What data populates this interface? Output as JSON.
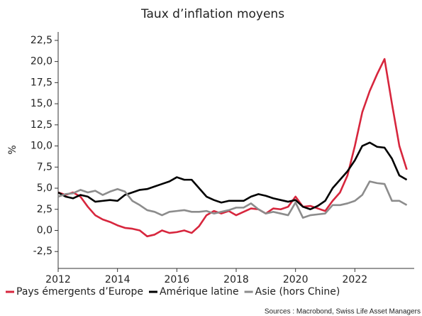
{
  "chart_data": {
    "type": "line",
    "title": "Taux d’inflation moyens",
    "ylabel": "%",
    "source": "Sources : Macrobond, Swiss Life Asset Managers",
    "x": [
      2012,
      2012.25,
      2012.5,
      2012.75,
      2013,
      2013.25,
      2013.5,
      2013.75,
      2014,
      2014.25,
      2014.5,
      2014.75,
      2015,
      2015.25,
      2015.5,
      2015.75,
      2016,
      2016.25,
      2016.5,
      2016.75,
      2017,
      2017.25,
      2017.5,
      2017.75,
      2018,
      2018.25,
      2018.5,
      2018.75,
      2019,
      2019.25,
      2019.5,
      2019.75,
      2020,
      2020.25,
      2020.5,
      2020.75,
      2021,
      2021.25,
      2021.5,
      2021.75,
      2022,
      2022.25,
      2022.5,
      2022.75,
      2023,
      2023.25,
      2023.5,
      2023.75
    ],
    "series": [
      {
        "name": "Pays émergents d’Europe",
        "color": "#d7263d",
        "values": [
          4.5,
          4.2,
          4.5,
          4.0,
          2.8,
          1.8,
          1.3,
          1.0,
          0.6,
          0.3,
          0.2,
          0.0,
          -0.7,
          -0.5,
          0.0,
          -0.3,
          -0.2,
          0.0,
          -0.3,
          0.5,
          1.8,
          2.3,
          2.0,
          2.3,
          1.8,
          2.2,
          2.6,
          2.5,
          2.0,
          2.6,
          2.5,
          2.8,
          4.0,
          2.8,
          2.9,
          2.6,
          2.3,
          3.5,
          4.5,
          6.5,
          10.0,
          14.0,
          16.5,
          18.5,
          20.3,
          15.0,
          10.0,
          7.2
        ]
      },
      {
        "name": "Amérique latine",
        "color": "#000000",
        "values": [
          4.5,
          4.0,
          3.8,
          4.2,
          4.0,
          3.4,
          3.5,
          3.6,
          3.5,
          4.2,
          4.5,
          4.8,
          4.9,
          5.2,
          5.5,
          5.8,
          6.3,
          6.0,
          6.0,
          5.0,
          4.0,
          3.6,
          3.3,
          3.5,
          3.5,
          3.5,
          4.0,
          4.3,
          4.1,
          3.8,
          3.6,
          3.4,
          3.6,
          2.8,
          2.5,
          2.9,
          3.5,
          5.0,
          6.0,
          7.0,
          8.3,
          10.0,
          10.4,
          9.9,
          9.8,
          8.5,
          6.5,
          6.0
        ]
      },
      {
        "name": "Asie (hors Chine)",
        "color": "#8c8c8c",
        "values": [
          4.0,
          4.3,
          4.4,
          4.8,
          4.5,
          4.7,
          4.2,
          4.6,
          4.9,
          4.6,
          3.5,
          3.0,
          2.4,
          2.2,
          1.8,
          2.2,
          2.3,
          2.4,
          2.2,
          2.2,
          2.3,
          2.0,
          2.2,
          2.4,
          2.7,
          2.7,
          3.2,
          2.5,
          2.0,
          2.2,
          2.0,
          1.8,
          3.3,
          1.5,
          1.8,
          1.9,
          2.0,
          3.0,
          3.0,
          3.2,
          3.5,
          4.2,
          5.8,
          5.6,
          5.5,
          3.5,
          3.5,
          3.0
        ]
      }
    ],
    "xlim": [
      2012,
      2024
    ],
    "xticks": [
      2012,
      2014,
      2016,
      2018,
      2020,
      2022
    ],
    "ylim": [
      -4.5,
      23.5
    ],
    "yticks": [
      {
        "value": -2.5,
        "label": "-2,5"
      },
      {
        "value": 0,
        "label": "0,0"
      },
      {
        "value": 2.5,
        "label": "2,5"
      },
      {
        "value": 5,
        "label": "5,0"
      },
      {
        "value": 7.5,
        "label": "7,5"
      },
      {
        "value": 10,
        "label": "10,0"
      },
      {
        "value": 12.5,
        "label": "12,5"
      },
      {
        "value": 15,
        "label": "15,0"
      },
      {
        "value": 17.5,
        "label": "17,5"
      },
      {
        "value": 20,
        "label": "20,0"
      },
      {
        "value": 22.5,
        "label": "22,5"
      }
    ],
    "grid": false,
    "legend": "bottom"
  }
}
